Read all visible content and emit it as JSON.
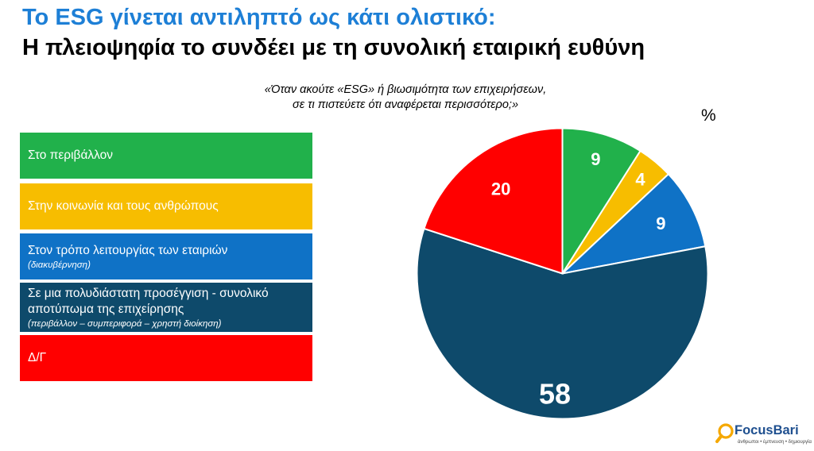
{
  "header": {
    "title_line1": "Το ESG γίνεται αντιληπτό ως κάτι ολιστικό:",
    "title_line2": "Η πλειοψηφία το συνδέει με τη συνολική εταιρική ευθύνη"
  },
  "question": {
    "line1": "«Όταν ακούτε «ESG» ή βιωσιμότητα των επιχειρήσεων,",
    "line2": "σε τι πιστεύετε ότι αναφέρεται περισσότερο;»"
  },
  "unit_label": "%",
  "legend": [
    {
      "label": "Στο περιβάλλον",
      "sublabel": "",
      "color": "#21b14b"
    },
    {
      "label": "Στην κοινωνία και τους ανθρώπους",
      "sublabel": "",
      "color": "#f7bd00"
    },
    {
      "label": "Στον τρόπο λειτουργίας των εταιριών",
      "sublabel": "(διακυβέρνηση)",
      "color": "#0f72c6"
    },
    {
      "label": "Σε μια πολυδιάστατη προσέγγιση - συνολικό αποτύπωμα της επιχείρησης",
      "sublabel": "(περιβάλλον – συμπεριφορά – χρηστή διοίκηση)",
      "color": "#0e4a6b"
    },
    {
      "label": "Δ/Γ",
      "sublabel": "",
      "color": "#ff0000"
    }
  ],
  "chart_data": {
    "type": "pie",
    "slices": [
      {
        "label": "Στο περιβάλλον",
        "value": 9,
        "color": "#21b14b"
      },
      {
        "label": "Στην κοινωνία και τους ανθρώπους",
        "value": 4,
        "color": "#f7bd00"
      },
      {
        "label": "Στον τρόπο λειτουργίας των εταιριών (διακυβέρνηση)",
        "value": 9,
        "color": "#0f72c6"
      },
      {
        "label": "Σε μια πολυδιάστατη προσέγγιση - συνολικό αποτύπωμα της επιχείρησης",
        "value": 58,
        "color": "#0e4a6b"
      },
      {
        "label": "Δ/Γ",
        "value": 20,
        "color": "#ff0000"
      }
    ],
    "start": "top",
    "direction": "clockwise",
    "legend_position": "left"
  },
  "logo": {
    "name": "FocusBari",
    "tagline": "άνθρωποι • έμπνευση • δημιουργία",
    "color": "#1e4f8f",
    "accent": "#f5a800"
  }
}
